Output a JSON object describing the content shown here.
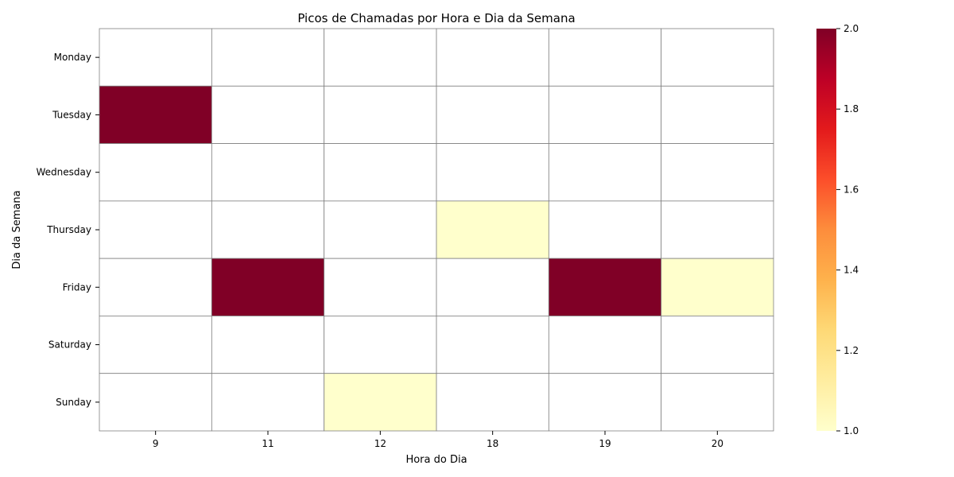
{
  "chart_data": {
    "type": "heatmap",
    "title": "Picos de Chamadas por Hora e Dia da Semana",
    "xlabel": "Hora do Dia",
    "ylabel": "Dia da Semana",
    "x_categories": [
      "9",
      "11",
      "12",
      "18",
      "19",
      "20"
    ],
    "y_categories": [
      "Monday",
      "Tuesday",
      "Wednesday",
      "Thursday",
      "Friday",
      "Saturday",
      "Sunday"
    ],
    "values": [
      [
        null,
        null,
        null,
        null,
        null,
        null
      ],
      [
        2,
        null,
        null,
        null,
        null,
        null
      ],
      [
        null,
        null,
        null,
        null,
        null,
        null
      ],
      [
        null,
        null,
        null,
        1,
        null,
        null
      ],
      [
        null,
        2,
        null,
        null,
        2,
        1
      ],
      [
        null,
        null,
        null,
        null,
        null,
        null
      ],
      [
        null,
        null,
        1,
        null,
        null,
        null
      ]
    ],
    "colorbar": {
      "range": [
        1.0,
        2.0
      ],
      "ticks": [
        "1.0",
        "1.2",
        "1.4",
        "1.6",
        "1.8",
        "2.0"
      ],
      "colormap": "YlOrRd",
      "stops": [
        "#ffffcc",
        "#ffeda0",
        "#fed976",
        "#feb24c",
        "#fd8d3c",
        "#fc4e2a",
        "#e31a1c",
        "#bd0026",
        "#800026"
      ]
    },
    "grid_color": "#808080"
  }
}
